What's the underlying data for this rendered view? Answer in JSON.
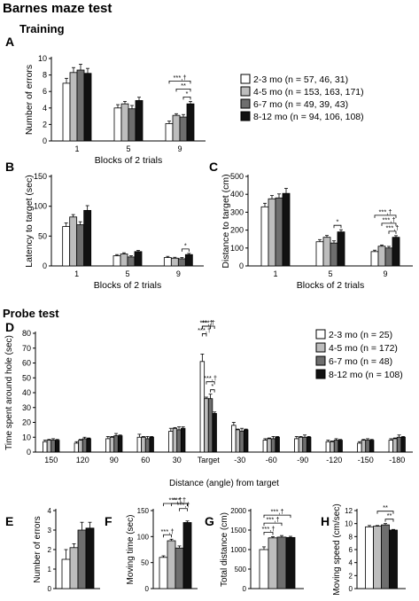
{
  "title": "Barnes maze test",
  "sections": {
    "training": "Training",
    "probe": "Probe test"
  },
  "colors": {
    "g0": "#ffffff",
    "g1": "#bdbdbd",
    "g2": "#6e6e6e",
    "g3": "#111111",
    "axis": "#000000"
  },
  "legends": {
    "training": [
      "2-3 mo (n = 57, 46, 31)",
      "4-5 mo (n = 153, 163, 171)",
      "6-7 mo (n = 49, 39, 43)",
      "8-12 mo (n = 94, 106, 108)"
    ],
    "probe": [
      "2-3 mo (n = 25)",
      "4-5 mo (n = 172)",
      "6-7 mo (n = 48)",
      "8-12 mo (n = 108)"
    ]
  },
  "chart_data": [
    {
      "id": "A",
      "type": "bar",
      "panel_label": "A",
      "categories": [
        "1",
        "5",
        "9"
      ],
      "xlabel": "Blocks of 2 trials",
      "ylabel": "Number of errors",
      "ylim": [
        0,
        10
      ],
      "yticks": [
        0,
        2,
        4,
        6,
        8,
        10
      ],
      "series": [
        {
          "values": [
            7.0,
            4.0,
            2.1
          ],
          "err": [
            0.6,
            0.4,
            0.3
          ]
        },
        {
          "values": [
            8.3,
            4.5,
            3.1
          ],
          "err": [
            0.6,
            0.3,
            0.2
          ]
        },
        {
          "values": [
            8.6,
            3.9,
            2.9
          ],
          "err": [
            0.7,
            0.4,
            0.3
          ]
        },
        {
          "values": [
            8.2,
            4.9,
            4.5
          ],
          "err": [
            0.6,
            0.4,
            0.3
          ]
        }
      ],
      "annotations": [
        {
          "group": 2,
          "from": 0,
          "to": 3,
          "label": "***,†"
        },
        {
          "group": 2,
          "from": 1,
          "to": 3,
          "label": "**"
        },
        {
          "group": 2,
          "from": 2,
          "to": 3,
          "label": "*"
        }
      ]
    },
    {
      "id": "B",
      "type": "bar",
      "panel_label": "B",
      "categories": [
        "1",
        "5",
        "9"
      ],
      "xlabel": "Blocks of 2 trials",
      "ylabel": "Latency to target (sec)",
      "ylim": [
        0,
        150
      ],
      "yticks": [
        0,
        50,
        100,
        150
      ],
      "series": [
        {
          "values": [
            66,
            17,
            14
          ],
          "err": [
            6,
            2,
            2
          ]
        },
        {
          "values": [
            82,
            20,
            13
          ],
          "err": [
            4,
            2,
            1.5
          ]
        },
        {
          "values": [
            69,
            15,
            12
          ],
          "err": [
            5,
            2,
            2
          ]
        },
        {
          "values": [
            93,
            24,
            19
          ],
          "err": [
            8,
            2,
            2
          ]
        }
      ],
      "annotations": [
        {
          "group": 2,
          "from": 2,
          "to": 3,
          "label": "*"
        }
      ]
    },
    {
      "id": "C",
      "type": "bar",
      "panel_label": "C",
      "categories": [
        "1",
        "5",
        "9"
      ],
      "xlabel": "Blocks of 2 trials",
      "ylabel": "Distance to target (cm)",
      "ylim": [
        0,
        500
      ],
      "yticks": [
        0,
        100,
        200,
        300,
        400,
        500
      ],
      "series": [
        {
          "values": [
            330,
            135,
            80
          ],
          "err": [
            20,
            12,
            8
          ]
        },
        {
          "values": [
            375,
            160,
            110
          ],
          "err": [
            18,
            10,
            7
          ]
        },
        {
          "values": [
            380,
            128,
            100
          ],
          "err": [
            22,
            12,
            9
          ]
        },
        {
          "values": [
            405,
            190,
            160
          ],
          "err": [
            28,
            12,
            9
          ]
        }
      ],
      "annotations": [
        {
          "group": 1,
          "from": 2,
          "to": 3,
          "label": "*"
        },
        {
          "group": 2,
          "from": 0,
          "to": 3,
          "label": "***,†"
        },
        {
          "group": 2,
          "from": 1,
          "to": 3,
          "label": "***,†"
        },
        {
          "group": 2,
          "from": 2,
          "to": 3,
          "label": "***,†"
        }
      ]
    },
    {
      "id": "D",
      "type": "bar",
      "panel_label": "D",
      "categories": [
        "150",
        "120",
        "90",
        "60",
        "30",
        "Target",
        "-30",
        "-60",
        "-90",
        "-120",
        "-150",
        "-180"
      ],
      "xlabel": "Distance (angle) from target",
      "ylabel": "Time spent around hole (sec)",
      "ylim": [
        0,
        80
      ],
      "yticks": [
        0,
        10,
        20,
        30,
        40,
        50,
        60,
        70,
        80
      ],
      "series": [
        {
          "values": [
            7,
            6,
            9,
            10,
            14,
            61,
            18,
            8,
            9,
            7,
            6,
            8
          ],
          "err": [
            1,
            1,
            1.5,
            2,
            2,
            5,
            2,
            1,
            1.5,
            1,
            1,
            1
          ]
        },
        {
          "values": [
            8,
            8,
            10,
            10,
            16,
            36,
            15,
            9,
            10,
            7,
            8,
            9
          ],
          "err": [
            0.5,
            0.5,
            0.5,
            0.5,
            0.5,
            1,
            0.5,
            0.5,
            0.5,
            0.5,
            0.5,
            0.5
          ]
        },
        {
          "values": [
            8,
            9,
            11,
            9,
            15,
            36,
            14,
            9,
            10,
            8,
            8,
            10
          ],
          "err": [
            1,
            1,
            1.5,
            1.5,
            2,
            3,
            2,
            1.5,
            1.5,
            1,
            1,
            1.5
          ]
        },
        {
          "values": [
            8,
            9,
            11,
            10,
            16,
            26,
            15,
            10,
            10,
            8,
            8,
            10
          ],
          "err": [
            0.5,
            0.5,
            0.5,
            0.5,
            1,
            1,
            0.5,
            0.5,
            0.5,
            0.5,
            0.5,
            0.5
          ]
        }
      ],
      "annotations": [
        {
          "group": 5,
          "from": 0,
          "to": 3,
          "label": "***,†"
        },
        {
          "group": 5,
          "from": 0,
          "to": 2,
          "label": "***,†"
        },
        {
          "group": 5,
          "from": 0,
          "to": 1,
          "label": "***,†"
        },
        {
          "group": 5,
          "from": 1,
          "to": 3,
          "label": "***,†"
        },
        {
          "group": 5,
          "from": 2,
          "to": 3,
          "label": "*"
        }
      ]
    },
    {
      "id": "E",
      "type": "bar",
      "panel_label": "E",
      "categories": [
        ""
      ],
      "xlabel": "",
      "ylabel": "Number of errors",
      "ylim": [
        0,
        4
      ],
      "yticks": [
        0,
        1,
        2,
        3,
        4
      ],
      "series": [
        {
          "values": [
            1.5
          ],
          "err": [
            0.5
          ]
        },
        {
          "values": [
            2.1
          ],
          "err": [
            0.2
          ]
        },
        {
          "values": [
            3.0
          ],
          "err": [
            0.4
          ]
        },
        {
          "values": [
            3.1
          ],
          "err": [
            0.3
          ]
        }
      ],
      "annotations": []
    },
    {
      "id": "F",
      "type": "bar",
      "panel_label": "F",
      "categories": [
        ""
      ],
      "xlabel": "",
      "ylabel": "Moving time (sec)",
      "ylim": [
        0,
        150
      ],
      "yticks": [
        0,
        50,
        100,
        150
      ],
      "series": [
        {
          "values": [
            60
          ],
          "err": [
            3
          ]
        },
        {
          "values": [
            92
          ],
          "err": [
            3
          ]
        },
        {
          "values": [
            78
          ],
          "err": [
            4
          ]
        },
        {
          "values": [
            127
          ],
          "err": [
            3
          ]
        }
      ],
      "annotations": [
        {
          "group": 0,
          "from": 0,
          "to": 3,
          "label": "***,†"
        },
        {
          "group": 0,
          "from": 1,
          "to": 3,
          "label": "***,†"
        },
        {
          "group": 0,
          "from": 2,
          "to": 3,
          "label": "***,†"
        },
        {
          "group": 0,
          "from": 0,
          "to": 1,
          "label": "***,†"
        }
      ]
    },
    {
      "id": "G",
      "type": "bar",
      "panel_label": "G",
      "categories": [
        ""
      ],
      "xlabel": "",
      "ylabel": "Total distance (cm)",
      "ylim": [
        0,
        2000
      ],
      "yticks": [
        0,
        500,
        1000,
        1500,
        2000
      ],
      "series": [
        {
          "values": [
            1000
          ],
          "err": [
            70
          ]
        },
        {
          "values": [
            1300
          ],
          "err": [
            30
          ]
        },
        {
          "values": [
            1320
          ],
          "err": [
            40
          ]
        },
        {
          "values": [
            1310
          ],
          "err": [
            30
          ]
        }
      ],
      "annotations": [
        {
          "group": 0,
          "from": 0,
          "to": 3,
          "label": "***,†"
        },
        {
          "group": 0,
          "from": 0,
          "to": 2,
          "label": "***,†"
        },
        {
          "group": 0,
          "from": 0,
          "to": 1,
          "label": "***,†"
        }
      ]
    },
    {
      "id": "H",
      "type": "bar",
      "panel_label": "H",
      "categories": [
        ""
      ],
      "xlabel": "",
      "ylabel": "Moving speed (cm/sec)",
      "ylim": [
        0,
        12
      ],
      "yticks": [
        0,
        2,
        4,
        6,
        8,
        10,
        12
      ],
      "series": [
        {
          "values": [
            9.5
          ],
          "err": [
            0.2
          ]
        },
        {
          "values": [
            9.6
          ],
          "err": [
            0.1
          ]
        },
        {
          "values": [
            9.8
          ],
          "err": [
            0.2
          ]
        },
        {
          "values": [
            9.0
          ],
          "err": [
            0.1
          ]
        }
      ],
      "annotations": [
        {
          "group": 0,
          "from": 1,
          "to": 3,
          "label": "**"
        },
        {
          "group": 0,
          "from": 2,
          "to": 3,
          "label": "**"
        }
      ]
    }
  ]
}
